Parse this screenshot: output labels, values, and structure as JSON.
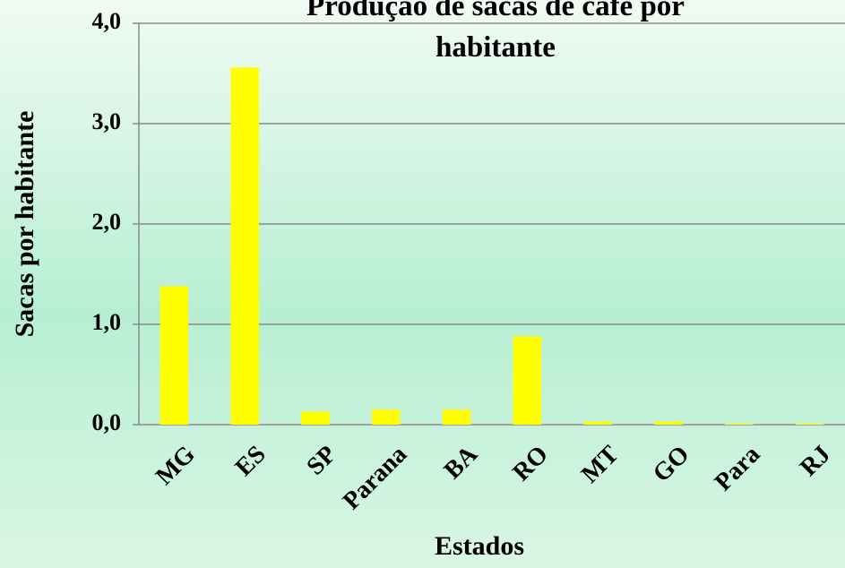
{
  "chart_data": {
    "type": "bar",
    "title": "Produção de sacas de café por habitante",
    "x_label": "Estados",
    "y_label": "Sacas por habitante",
    "categories": [
      "MG",
      "ES",
      "SP",
      "Parana",
      "BA",
      "RO",
      "MT",
      "GO",
      "Para",
      "RJ"
    ],
    "values": [
      1.38,
      3.56,
      0.13,
      0.15,
      0.15,
      0.88,
      0.03,
      0.03,
      0.01,
      0.01
    ],
    "color": "#ffff00",
    "ylim": [
      0,
      4
    ],
    "yticks": [
      {
        "value": 0,
        "label": "0,0"
      },
      {
        "value": 1,
        "label": "1,0"
      },
      {
        "value": 2,
        "label": "2,0"
      },
      {
        "value": 3,
        "label": "3,0"
      },
      {
        "value": 4,
        "label": "4,0"
      }
    ],
    "grid": true
  }
}
